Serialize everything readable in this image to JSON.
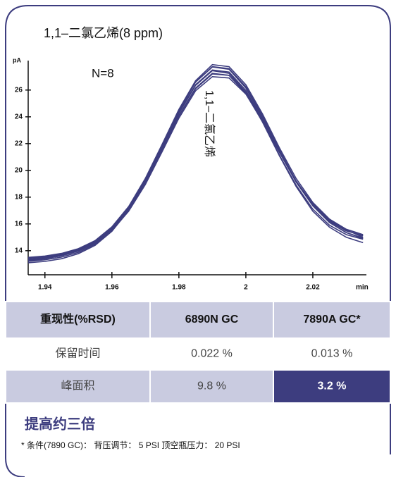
{
  "chart_data": {
    "type": "line",
    "title": "1,1–二氯乙烯(8 ppm)",
    "y_label": "pA",
    "x_label": "min",
    "annotations": [
      "N=8",
      "1,1–二氯乙烯"
    ],
    "x": [
      1.935,
      1.94,
      1.945,
      1.95,
      1.955,
      1.96,
      1.965,
      1.97,
      1.975,
      1.98,
      1.985,
      1.99,
      1.995,
      2.0,
      2.005,
      2.01,
      2.015,
      2.02,
      2.025,
      2.03,
      2.035
    ],
    "series": [
      {
        "color": "#3d3d7f",
        "values": [
          13.43,
          13.54,
          13.73,
          14.07,
          14.66,
          15.66,
          17.18,
          19.28,
          21.79,
          24.33,
          26.4,
          27.5,
          27.34,
          25.98,
          23.81,
          21.37,
          19.12,
          17.36,
          16.18,
          15.48,
          15.14
        ]
      },
      {
        "color": "#3d3d7f",
        "values": [
          13.3,
          13.42,
          13.62,
          13.98,
          14.58,
          15.6,
          17.15,
          19.3,
          21.85,
          24.45,
          26.6,
          27.75,
          27.6,
          26.25,
          24.05,
          21.55,
          19.2,
          17.35,
          16.1,
          15.35,
          14.95
        ]
      },
      {
        "color": "#3d3d7f",
        "values": [
          13.2,
          13.32,
          13.52,
          13.88,
          14.48,
          15.5,
          17.02,
          19.1,
          21.6,
          24.1,
          26.15,
          27.25,
          27.1,
          25.75,
          23.6,
          21.15,
          18.9,
          17.1,
          15.9,
          15.2,
          14.85
        ]
      },
      {
        "color": "#3d3d7f",
        "values": [
          13.5,
          13.6,
          13.8,
          14.15,
          14.75,
          15.78,
          17.3,
          19.4,
          21.95,
          24.55,
          26.7,
          27.9,
          27.75,
          26.4,
          24.2,
          21.7,
          19.4,
          17.6,
          16.35,
          15.6,
          15.2
        ]
      },
      {
        "color": "#3d3d7f",
        "values": [
          13.35,
          13.48,
          13.68,
          14.02,
          14.6,
          15.58,
          17.05,
          19.1,
          21.55,
          24.05,
          26.1,
          27.2,
          27.1,
          25.85,
          23.75,
          21.4,
          19.2,
          17.45,
          16.25,
          15.5,
          15.1
        ]
      },
      {
        "color": "#3d3d7f",
        "values": [
          13.25,
          13.4,
          13.62,
          13.98,
          14.55,
          15.5,
          16.95,
          18.95,
          21.4,
          23.9,
          25.95,
          27.0,
          26.9,
          25.7,
          23.65,
          21.35,
          19.2,
          17.5,
          16.3,
          15.55,
          15.0
        ]
      },
      {
        "color": "#3d3d7f",
        "values": [
          13.45,
          13.55,
          13.75,
          14.1,
          14.7,
          15.72,
          17.25,
          19.38,
          21.9,
          24.5,
          26.6,
          27.72,
          27.55,
          26.15,
          23.95,
          21.45,
          19.15,
          17.35,
          16.1,
          15.35,
          14.9
        ]
      },
      {
        "color": "#3d3d7f",
        "values": [
          13.1,
          13.2,
          13.4,
          13.78,
          14.4,
          15.45,
          17.0,
          19.15,
          21.7,
          24.25,
          26.35,
          27.45,
          27.25,
          25.85,
          23.6,
          21.1,
          18.8,
          16.95,
          15.75,
          15.0,
          14.6
        ]
      }
    ],
    "xlim": [
      1.935,
      2.036
    ],
    "ylim": [
      12.2,
      28.2
    ],
    "xticks": [
      1.94,
      1.96,
      1.98,
      2,
      2.02
    ],
    "yticks": [
      14,
      16,
      18,
      20,
      22,
      24,
      26
    ]
  },
  "table": {
    "header": [
      "重现性(%RSD)",
      "6890N GC",
      "7890A GC*"
    ],
    "rows": [
      [
        "保留时间",
        "0.022 %",
        "0.013 %"
      ],
      [
        "峰面积",
        "9.8 %",
        "3.2 %"
      ]
    ]
  },
  "conclusion": "提高约三倍",
  "footnote": "* 条件(7890 GC)： 背压调节： 5 PSI 顶空瓶压力： 20 PSI"
}
